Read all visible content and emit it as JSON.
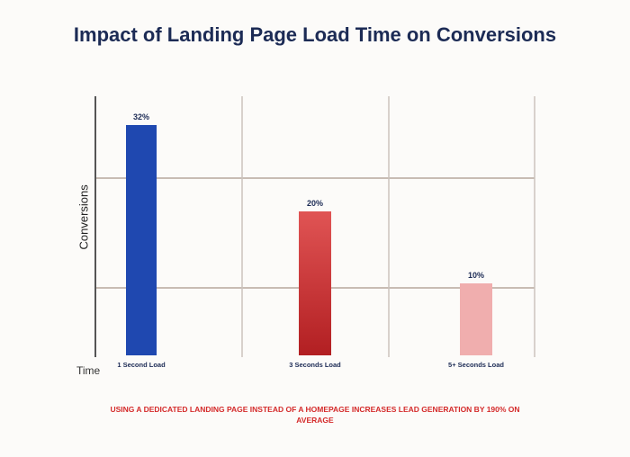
{
  "chart_data": {
    "type": "bar",
    "title": "Impact of Landing Page Load Time on Conversions",
    "xlabel": "Time",
    "ylabel": "Conversions",
    "categories": [
      "1 Second Load",
      "3 Seconds Load",
      "5+ Seconds Load"
    ],
    "values": [
      32,
      20,
      10
    ],
    "data_labels": [
      "32%",
      "20%",
      "10%"
    ],
    "colors": [
      "#1f48b0",
      "#c52a2a",
      "#f0aeae"
    ],
    "ylim": [
      0,
      36
    ],
    "grid": true,
    "annotation": "USING A DEDICATED LANDING PAGE INSTEAD OF A HOMEPAGE INCREASES LEAD GENERATION BY 190% ON AVERAGE"
  }
}
